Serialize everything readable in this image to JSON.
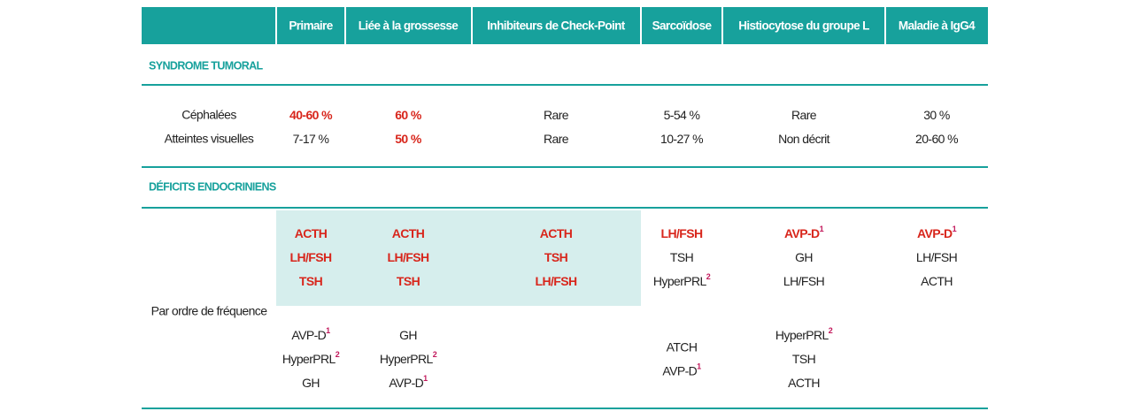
{
  "header": {
    "columns": [
      "Primaire",
      "Liée à la grossesse",
      "Inhibiteurs de Check-Point",
      "Sarcoïdose",
      "Histiocytose du groupe L",
      "Maladie à IgG4"
    ]
  },
  "sections": [
    {
      "title": "SYNDROME TUMORAL",
      "rows": [
        {
          "label": "Céphalées",
          "cells": [
            {
              "text": "40-60 %",
              "red": true
            },
            {
              "text": "60 %",
              "red": true
            },
            {
              "text": "Rare"
            },
            {
              "text": "5-54 %"
            },
            {
              "text": "Rare"
            },
            {
              "text": "30 %"
            }
          ]
        },
        {
          "label": "Atteintes visuelles",
          "cells": [
            {
              "text": "7-17 %"
            },
            {
              "text": "50 %",
              "red": true
            },
            {
              "text": "Rare"
            },
            {
              "text": "10-27 %"
            },
            {
              "text": "Non décrit"
            },
            {
              "text": "20-60 %"
            }
          ]
        }
      ]
    },
    {
      "title": "DÉFICITS ENDOCRINIENS",
      "label": "Par ordre de fréquence",
      "top": [
        [
          {
            "text": "ACTH",
            "red": true
          },
          {
            "text": "LH/FSH",
            "red": true
          },
          {
            "text": "TSH",
            "red": true
          }
        ],
        [
          {
            "text": "ACTH",
            "red": true
          },
          {
            "text": "LH/FSH",
            "red": true
          },
          {
            "text": "TSH",
            "red": true
          }
        ],
        [
          {
            "text": "ACTH",
            "red": true
          },
          {
            "text": "TSH",
            "red": true
          },
          {
            "text": "LH/FSH",
            "red": true
          }
        ],
        [
          {
            "text": "LH/FSH",
            "red": true
          },
          {
            "text": "TSH"
          },
          {
            "text": "HyperPRL",
            "sup": "2"
          }
        ],
        [
          {
            "text": "AVP-D",
            "sup": "1",
            "red": true
          },
          {
            "text": "GH"
          },
          {
            "text": "LH/FSH"
          }
        ],
        [
          {
            "text": "AVP-D",
            "sup": "1",
            "red": true
          },
          {
            "text": "LH/FSH"
          },
          {
            "text": "ACTH"
          }
        ]
      ],
      "bottom": [
        [
          {
            "text": "AVP-D",
            "sup": "1"
          },
          {
            "text": "HyperPRL",
            "sup": "2"
          },
          {
            "text": "GH"
          }
        ],
        [
          {
            "text": "GH"
          },
          {
            "text": "HyperPRL",
            "sup": "2"
          },
          {
            "text": "AVP-D",
            "sup": "1"
          }
        ],
        [],
        [
          {
            "text": "ATCH"
          },
          {
            "text": "AVP-D",
            "sup": "1"
          }
        ],
        [
          {
            "text": "HyperPRL",
            "sup": "2"
          },
          {
            "text": "TSH"
          },
          {
            "text": "ACTH"
          }
        ],
        []
      ]
    }
  ]
}
